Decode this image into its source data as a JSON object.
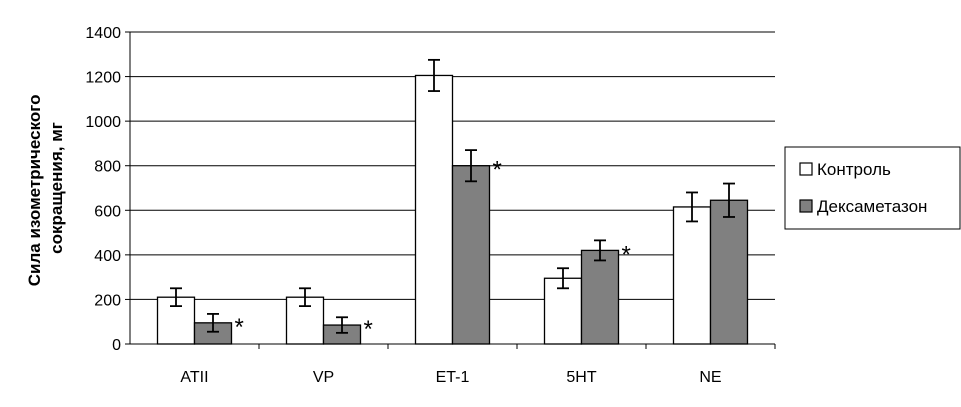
{
  "chart_data": {
    "type": "bar",
    "ylabel": "Сила изометрического сокращения, мг",
    "ylim": [
      0,
      1400
    ],
    "yticks": [
      "0",
      "200",
      "400",
      "600",
      "800",
      "1000",
      "1200",
      "1400"
    ],
    "categories": [
      "ATII",
      "VP",
      "ET-1",
      "5HT",
      "NE"
    ],
    "grid": true,
    "legend_position": "right",
    "series": [
      {
        "name": "Контроль",
        "color": "#ffffff",
        "values": [
          210,
          210,
          1205,
          295,
          615
        ],
        "errors": [
          40,
          40,
          70,
          45,
          65
        ]
      },
      {
        "name": "Дексаметазон",
        "color": "#808080",
        "values": [
          95,
          85,
          800,
          420,
          645
        ],
        "errors": [
          40,
          35,
          70,
          45,
          75
        ]
      }
    ],
    "annotations": [
      {
        "category": "ATII",
        "text": "*"
      },
      {
        "category": "VP",
        "text": "*"
      },
      {
        "category": "ET-1",
        "text": "*"
      },
      {
        "category": "5HT",
        "text": "*"
      }
    ]
  }
}
